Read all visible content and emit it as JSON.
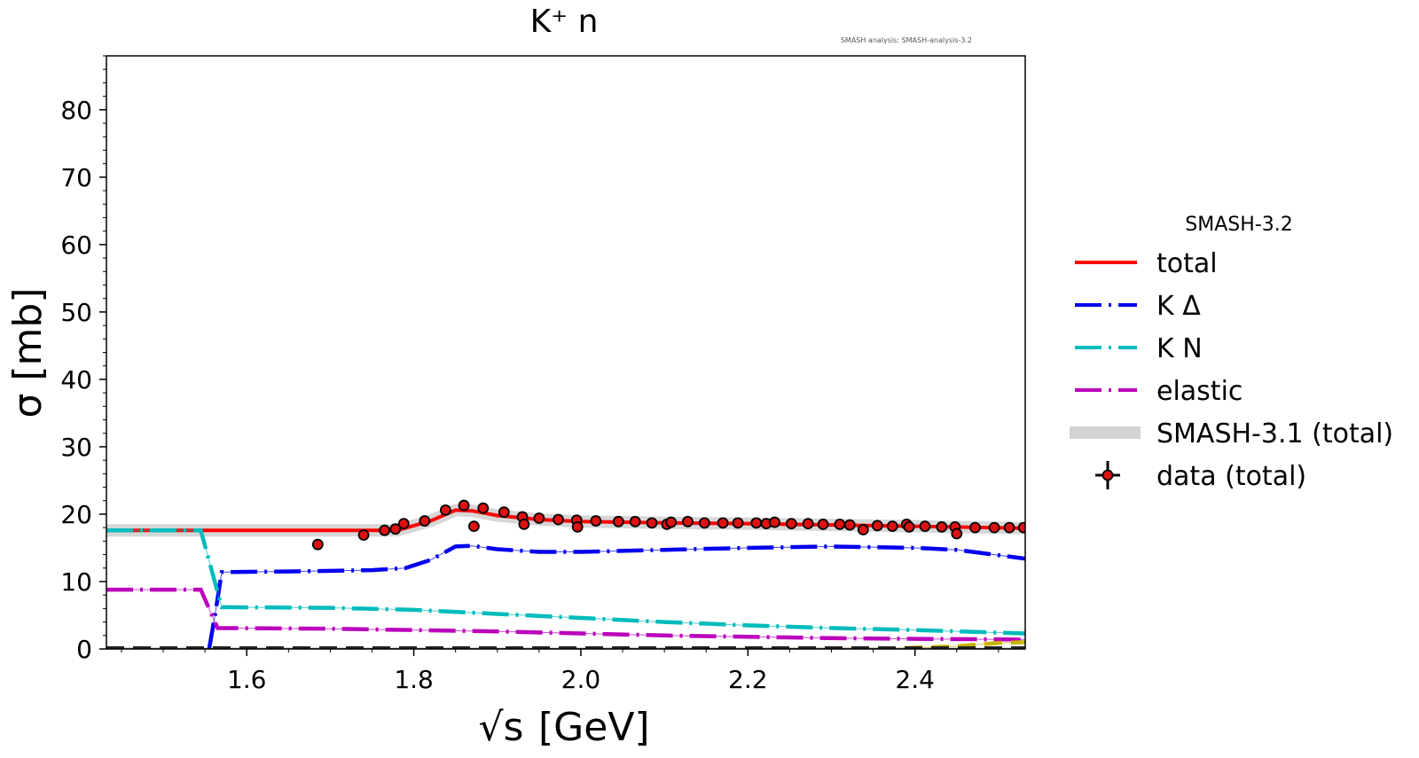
{
  "chart_data": {
    "type": "line",
    "title": "K⁺ n",
    "subtitle": "SMASH analysis: SMASH-analysis-3.2",
    "xlabel": "[GeV]",
    "xlabel_prefix": "√s",
    "ylabel": "σ [mb]",
    "xlim": [
      1.432,
      2.532
    ],
    "ylim": [
      0,
      88
    ],
    "xticks": [
      1.6,
      1.8,
      2.0,
      2.2,
      2.4
    ],
    "xtick_labels": [
      "1.6",
      "1.8",
      "2.0",
      "2.2",
      "2.4"
    ],
    "yticks": [
      0,
      10,
      20,
      30,
      40,
      50,
      60,
      70,
      80
    ],
    "ytick_labels": [
      "0",
      "10",
      "20",
      "30",
      "40",
      "50",
      "60",
      "70",
      "80"
    ],
    "grid": false,
    "legend": {
      "title": "SMASH-3.2",
      "placement": "outside-right",
      "entries": [
        "total",
        "K Δ",
        "K N",
        "elastic",
        "SMASH-3.1 (total)",
        "data (total)"
      ]
    },
    "series": [
      {
        "name": "total",
        "color": "#ff0000",
        "style": "solid",
        "x": [
          1.432,
          1.55,
          1.7,
          1.78,
          1.82,
          1.85,
          1.87,
          1.9,
          1.95,
          2.0,
          2.1,
          2.2,
          2.3,
          2.4,
          2.532
        ],
        "y": [
          17.6,
          17.6,
          17.6,
          17.6,
          19.0,
          20.6,
          20.5,
          19.8,
          19.2,
          18.9,
          18.7,
          18.6,
          18.4,
          18.2,
          17.9
        ]
      },
      {
        "name": "K Δ",
        "color": "#0000ee",
        "style": "dash-dot",
        "x": [
          1.555,
          1.562,
          1.57,
          1.65,
          1.75,
          1.79,
          1.82,
          1.85,
          1.87,
          1.9,
          1.95,
          2.0,
          2.1,
          2.2,
          2.3,
          2.4,
          2.45,
          2.532
        ],
        "y": [
          0.0,
          5.0,
          11.4,
          11.5,
          11.7,
          12.0,
          13.2,
          15.2,
          15.3,
          14.8,
          14.4,
          14.4,
          14.7,
          15.0,
          15.2,
          15.0,
          14.7,
          13.4
        ]
      },
      {
        "name": "K N",
        "color": "#00bbbb",
        "style": "dash-dot",
        "x": [
          1.432,
          1.545,
          1.57,
          1.7,
          1.8,
          1.9,
          2.0,
          2.1,
          2.2,
          2.3,
          2.4,
          2.532
        ],
        "y": [
          17.6,
          17.6,
          6.2,
          6.1,
          5.8,
          5.2,
          4.6,
          4.0,
          3.5,
          3.1,
          2.8,
          2.3
        ]
      },
      {
        "name": "elastic",
        "color": "#bb00bb",
        "style": "dash-dot",
        "x": [
          1.432,
          1.545,
          1.565,
          1.7,
          1.8,
          1.9,
          2.0,
          2.1,
          2.2,
          2.3,
          2.4,
          2.532
        ],
        "y": [
          8.8,
          8.8,
          3.1,
          3.0,
          2.8,
          2.6,
          2.3,
          2.0,
          1.8,
          1.6,
          1.5,
          1.4
        ]
      },
      {
        "name": "",
        "color": "#c8b400",
        "style": "dashed",
        "x": [
          1.432,
          2.38,
          2.45,
          2.5,
          2.532
        ],
        "y": [
          0.0,
          0.1,
          0.4,
          0.9,
          1.0
        ]
      },
      {
        "name": "",
        "color": "#222222",
        "style": "dashed",
        "x": [
          1.432,
          2.532
        ],
        "y": [
          0.1,
          0.1
        ]
      }
    ],
    "band": {
      "name": "SMASH-3.1 (total)",
      "color": "#d3d3d3",
      "x": [
        1.432,
        1.55,
        1.7,
        1.78,
        1.82,
        1.85,
        1.87,
        1.9,
        1.95,
        2.0,
        2.1,
        2.2,
        2.3,
        2.4,
        2.532
      ],
      "y": [
        17.6,
        17.6,
        17.6,
        17.6,
        19.0,
        20.6,
        20.5,
        19.8,
        19.2,
        18.9,
        18.7,
        18.6,
        18.4,
        18.2,
        17.9
      ]
    },
    "points": {
      "name": "data (total)",
      "color": "#dd1111",
      "x": [
        1.685,
        1.74,
        1.765,
        1.778,
        1.788,
        1.813,
        1.838,
        1.86,
        1.872,
        1.883,
        1.908,
        1.93,
        1.932,
        1.95,
        1.973,
        1.995,
        1.996,
        2.018,
        2.045,
        2.065,
        2.085,
        2.103,
        2.108,
        2.128,
        2.148,
        2.17,
        2.188,
        2.21,
        2.222,
        2.232,
        2.252,
        2.272,
        2.29,
        2.31,
        2.322,
        2.338,
        2.355,
        2.373,
        2.39,
        2.393,
        2.412,
        2.432,
        2.448,
        2.45,
        2.472,
        2.495,
        2.513,
        2.53
      ],
      "y": [
        15.5,
        16.9,
        17.6,
        17.8,
        18.6,
        19.0,
        20.6,
        21.3,
        18.2,
        20.9,
        20.3,
        19.6,
        18.5,
        19.4,
        19.2,
        19.1,
        18.1,
        19.0,
        18.9,
        18.9,
        18.7,
        18.5,
        18.8,
        18.9,
        18.7,
        18.7,
        18.7,
        18.7,
        18.6,
        18.8,
        18.6,
        18.6,
        18.5,
        18.5,
        18.4,
        17.7,
        18.3,
        18.2,
        18.5,
        18.1,
        18.2,
        18.1,
        18.1,
        17.1,
        18.0,
        18.0,
        18.0,
        18.0
      ],
      "err": [
        0.8,
        0.5,
        0.4,
        0.4,
        0.4,
        0.4,
        0.4,
        0.4,
        0.5,
        0.4,
        0.4,
        0.4,
        0.6,
        0.4,
        0.4,
        0.4,
        0.6,
        0.4,
        0.4,
        0.4,
        0.4,
        0.5,
        0.4,
        0.4,
        0.4,
        0.4,
        0.4,
        0.4,
        0.4,
        0.4,
        0.4,
        0.4,
        0.4,
        0.4,
        0.4,
        0.5,
        0.4,
        0.4,
        0.4,
        0.4,
        0.4,
        0.4,
        0.4,
        0.6,
        0.4,
        0.4,
        0.4,
        0.4
      ]
    }
  }
}
